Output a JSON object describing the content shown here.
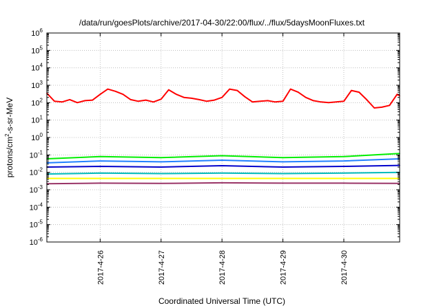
{
  "chart_data": {
    "type": "line",
    "title": "/data/run/goesPlots/archive/2017-04-30/22:00/flux/../flux/5daysMoonFluxes.txt",
    "xlabel": "Coordinated Universal Time (UTC)",
    "ylabel": {
      "base": "protons/cm",
      "sup": "2",
      "rest": "-s-sr-MeV"
    },
    "x_range": [
      "2017-04-25 03:00",
      "2017-04-30 22:00"
    ],
    "x_ticks": [
      "2017-4-26",
      "2017-4-27",
      "2017-4-28",
      "2017-4-29",
      "2017-4-30"
    ],
    "y_scale": "log",
    "ylim": [
      1e-06,
      1000000.0
    ],
    "y_ticks": [
      {
        "value": 1000000.0,
        "mant": "10",
        "exp": "6"
      },
      {
        "value": 100000.0,
        "mant": "10",
        "exp": "5"
      },
      {
        "value": 10000.0,
        "mant": "10",
        "exp": "4"
      },
      {
        "value": 1000.0,
        "mant": "10",
        "exp": "3"
      },
      {
        "value": 100.0,
        "mant": "10",
        "exp": "2"
      },
      {
        "value": 10.0,
        "mant": "10",
        "exp": "1"
      },
      {
        "value": 1.0,
        "mant": "10",
        "exp": "0"
      },
      {
        "value": 0.1,
        "mant": "10",
        "exp": "-1"
      },
      {
        "value": 0.01,
        "mant": "10",
        "exp": "-2"
      },
      {
        "value": 0.001,
        "mant": "10",
        "exp": "-3"
      },
      {
        "value": 0.0001,
        "mant": "10",
        "exp": "-4"
      },
      {
        "value": 1e-05,
        "mant": "10",
        "exp": "-5"
      },
      {
        "value": 1e-06,
        "mant": "10",
        "exp": "-6"
      }
    ],
    "grid": true,
    "series": [
      {
        "color": "#ff0000",
        "x": [
          "2017-04-25 03:00",
          "2017-04-25 06:00",
          "2017-04-25 09:00",
          "2017-04-25 12:00",
          "2017-04-25 15:00",
          "2017-04-25 18:00",
          "2017-04-25 21:00",
          "2017-04-26 00:00",
          "2017-04-26 03:00",
          "2017-04-26 06:00",
          "2017-04-26 09:00",
          "2017-04-26 12:00",
          "2017-04-26 15:00",
          "2017-04-26 18:00",
          "2017-04-26 21:00",
          "2017-04-27 00:00",
          "2017-04-27 03:00",
          "2017-04-27 06:00",
          "2017-04-27 09:00",
          "2017-04-27 12:00",
          "2017-04-27 15:00",
          "2017-04-27 18:00",
          "2017-04-27 21:00",
          "2017-04-28 00:00",
          "2017-04-28 03:00",
          "2017-04-28 06:00",
          "2017-04-28 09:00",
          "2017-04-28 12:00",
          "2017-04-28 15:00",
          "2017-04-28 18:00",
          "2017-04-28 21:00",
          "2017-04-29 00:00",
          "2017-04-29 03:00",
          "2017-04-29 06:00",
          "2017-04-29 09:00",
          "2017-04-29 12:00",
          "2017-04-29 15:00",
          "2017-04-29 18:00",
          "2017-04-29 21:00",
          "2017-04-30 00:00",
          "2017-04-30 03:00",
          "2017-04-30 06:00",
          "2017-04-30 09:00",
          "2017-04-30 12:00",
          "2017-04-30 15:00",
          "2017-04-30 18:00",
          "2017-04-30 21:00",
          "2017-04-30 22:00"
        ],
        "values": [
          350,
          120,
          110,
          150,
          100,
          130,
          140,
          300,
          600,
          450,
          300,
          150,
          120,
          140,
          110,
          160,
          550,
          300,
          200,
          180,
          150,
          120,
          140,
          200,
          600,
          500,
          220,
          110,
          120,
          130,
          110,
          120,
          600,
          400,
          200,
          130,
          110,
          100,
          110,
          120,
          500,
          400,
          150,
          50,
          55,
          70,
          300,
          250
        ]
      },
      {
        "color": "#00ee00",
        "x": [
          "2017-04-25 03:00",
          "2017-04-26 00:00",
          "2017-04-27 00:00",
          "2017-04-28 00:00",
          "2017-04-29 00:00",
          "2017-04-30 00:00",
          "2017-04-30 22:00"
        ],
        "values": [
          0.06,
          0.08,
          0.07,
          0.09,
          0.07,
          0.08,
          0.12
        ]
      },
      {
        "color": "#2080ff",
        "x": [
          "2017-04-25 03:00",
          "2017-04-26 00:00",
          "2017-04-27 00:00",
          "2017-04-28 00:00",
          "2017-04-29 00:00",
          "2017-04-30 00:00",
          "2017-04-30 22:00"
        ],
        "values": [
          0.035,
          0.045,
          0.04,
          0.05,
          0.04,
          0.045,
          0.06
        ]
      },
      {
        "color": "#0000cc",
        "x": [
          "2017-04-25 03:00",
          "2017-04-26 00:00",
          "2017-04-27 00:00",
          "2017-04-28 00:00",
          "2017-04-29 00:00",
          "2017-04-30 00:00",
          "2017-04-30 22:00"
        ],
        "values": [
          0.02,
          0.022,
          0.02,
          0.024,
          0.02,
          0.022,
          0.025
        ]
      },
      {
        "color": "#00bbbb",
        "x": [
          "2017-04-25 03:00",
          "2017-04-26 00:00",
          "2017-04-27 00:00",
          "2017-04-28 00:00",
          "2017-04-29 00:00",
          "2017-04-30 00:00",
          "2017-04-30 22:00"
        ],
        "values": [
          0.008,
          0.009,
          0.0085,
          0.009,
          0.0085,
          0.009,
          0.01
        ]
      },
      {
        "color": "#ffff00",
        "x": [
          "2017-04-25 03:00",
          "2017-04-26 00:00",
          "2017-04-27 00:00",
          "2017-04-28 00:00",
          "2017-04-29 00:00",
          "2017-04-30 00:00",
          "2017-04-30 22:00"
        ],
        "values": [
          0.0045,
          0.0045,
          0.0045,
          0.0045,
          0.0045,
          0.0045,
          0.0045
        ]
      },
      {
        "color": "#993366",
        "x": [
          "2017-04-25 03:00",
          "2017-04-26 00:00",
          "2017-04-27 00:00",
          "2017-04-28 00:00",
          "2017-04-29 00:00",
          "2017-04-30 00:00",
          "2017-04-30 22:00"
        ],
        "values": [
          0.0022,
          0.0024,
          0.0023,
          0.0025,
          0.0024,
          0.0024,
          0.0023
        ]
      }
    ]
  }
}
